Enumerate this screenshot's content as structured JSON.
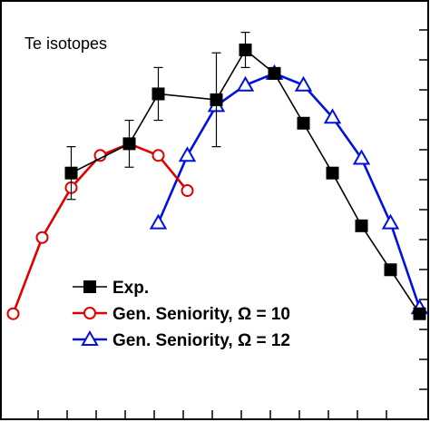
{
  "chart_data": {
    "type": "line",
    "title": "Te isotopes",
    "xlabel": "",
    "ylabel": "",
    "xlim": [
      0,
      14.6
    ],
    "ylim": [
      0,
      14.3
    ],
    "grid": false,
    "legend_position": "bottom-left",
    "series": [
      {
        "name": "Exp.",
        "color": "#000000",
        "marker": "filled-square",
        "x": [
          2,
          4,
          5,
          7,
          8,
          9,
          10,
          11,
          12,
          13,
          14
        ],
        "y": [
          8.4,
          9.4,
          11.1,
          10.9,
          12.6,
          11.8,
          10.1,
          8.4,
          6.6,
          5.1,
          3.6
        ],
        "err": [
          0.9,
          0.8,
          0.9,
          1.6,
          0.6,
          0,
          0,
          0,
          0,
          0,
          0
        ]
      },
      {
        "name": "Gen. Seniority, Ω = 10",
        "color": "#e00000",
        "marker": "open-circle",
        "x": [
          0,
          1,
          2,
          3,
          4,
          5,
          6
        ],
        "y": [
          3.6,
          6.2,
          7.9,
          9.0,
          9.4,
          9.0,
          7.8
        ]
      },
      {
        "name": "Gen. Seniority, Ω = 12",
        "color": "#0010e0",
        "marker": "open-triangle",
        "x": [
          5,
          6,
          7,
          8,
          9,
          10,
          11,
          12,
          13,
          14
        ],
        "y": [
          6.7,
          9.0,
          10.7,
          11.4,
          11.8,
          11.4,
          10.3,
          8.9,
          6.7,
          3.8
        ]
      }
    ]
  }
}
